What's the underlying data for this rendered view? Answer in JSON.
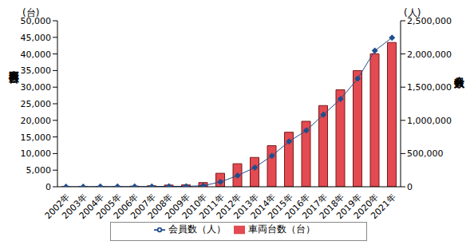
{
  "chart_data": {
    "type": "bar",
    "categories": [
      "2002年",
      "2003年",
      "2004年",
      "2005年",
      "2006年",
      "2007年",
      "2008年",
      "2009年",
      "2010年",
      "2011年",
      "2012年",
      "2013年",
      "2014年",
      "2015年",
      "2016年",
      "2017年",
      "2018年",
      "2019年",
      "2020年",
      "2021年"
    ],
    "series": [
      {
        "name": "車両台数（台）",
        "type": "bar",
        "color": "#e34a51",
        "values": [
          6,
          21,
          86,
          118,
          186,
          287,
          510,
          563,
          1265,
          4061,
          6940,
          8831,
          12373,
          16418,
          19717,
          24458,
          29208,
          34984,
          40051,
          43460
        ]
      },
      {
        "name": "会員数（人）",
        "type": "line",
        "axis": "y2",
        "color": "#1f4e8c",
        "marker": "diamond",
        "values": [
          50,
          300,
          1700,
          1700,
          2300,
          3900,
          6400,
          6400,
          15894,
          73224,
          167745,
          289497,
          465703,
          681298,
          846240,
          1085922,
          1320794,
          1627396,
          2049360,
          2245617
        ]
      }
    ],
    "ylim": [
      0,
      50000
    ],
    "yticks": [
      0,
      {
        "value": 5000,
        "label": "5,000"
      },
      {
        "value": 10000,
        "label": "10,000"
      },
      {
        "value": 15000,
        "label": "15,000"
      },
      {
        "value": 20000,
        "label": "20,000"
      },
      {
        "value": 25000,
        "label": "25,000"
      },
      {
        "value": 30000,
        "label": "30,000"
      },
      {
        "value": 35000,
        "label": "35,000"
      },
      {
        "value": 40000,
        "label": "40,000"
      },
      {
        "value": 45000,
        "label": "45,000"
      },
      {
        "value": 50000,
        "label": "50,000"
      }
    ],
    "y2lim": [
      0,
      2500000
    ],
    "y2ticks": [
      0,
      {
        "value": 500000,
        "label": "500,000"
      },
      {
        "value": 1000000,
        "label": "1,000,000"
      },
      {
        "value": 1500000,
        "label": "1,500,000"
      },
      {
        "value": 2000000,
        "label": "2,000,000"
      },
      {
        "value": 2500000,
        "label": "2,500,000"
      }
    ],
    "y_label": "車両台数",
    "y2_label": "会員数",
    "annotations": [
      "(台)",
      "(人)"
    ],
    "legend": "bottom",
    "grid": false
  }
}
